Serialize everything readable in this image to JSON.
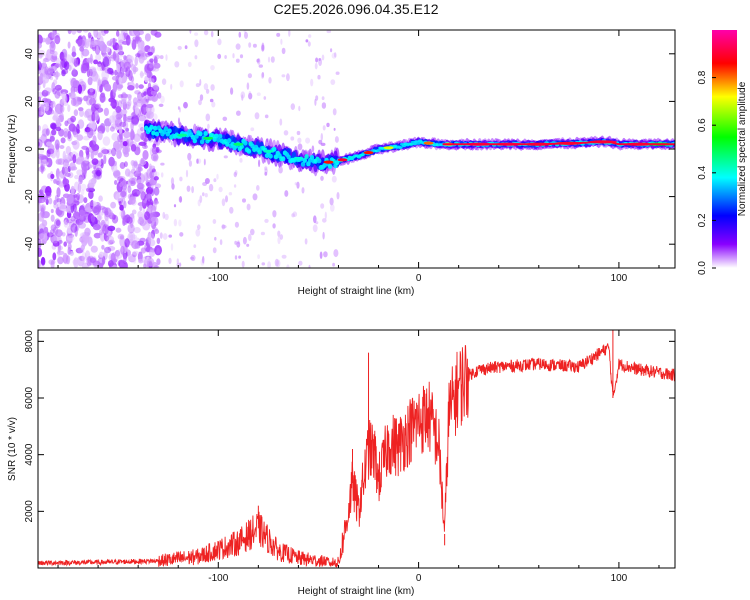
{
  "chart_data": [
    {
      "type": "heatmap",
      "title": "C2E5.2026.096.04.35.E12",
      "xlabel": "Height of straight line (km)",
      "ylabel": "Frequency (Hz)",
      "xlim": [
        -190,
        128
      ],
      "ylim": [
        -50,
        50
      ],
      "x_ticks": [
        -100,
        0,
        100
      ],
      "y_ticks": [
        -40,
        -20,
        0,
        20,
        40
      ],
      "colorbar": {
        "label": "Normalized spectral amplitude",
        "range": [
          0,
          1
        ],
        "ticks": [
          0.0,
          0.2,
          0.4,
          0.6,
          0.8
        ],
        "colors": [
          "#ffffff",
          "#8800ff",
          "#0000ff",
          "#00ffff",
          "#00ff00",
          "#ffff00",
          "#ff0000",
          "#ff00aa"
        ]
      },
      "ridge": {
        "x": [
          -135,
          -120,
          -100,
          -80,
          -60,
          -50,
          -40,
          -30,
          -20,
          -10,
          0,
          10,
          20,
          40,
          60,
          80,
          90,
          95,
          100,
          110,
          120,
          128
        ],
        "freq": [
          8,
          6,
          4,
          0,
          -4,
          -6,
          -5,
          -3,
          0,
          1,
          3,
          2,
          2,
          2,
          2,
          2.5,
          3,
          3,
          2,
          2,
          2,
          2
        ]
      },
      "noise_region_x": [
        -190,
        -130
      ]
    },
    {
      "type": "line",
      "xlabel": "Height of straight line (km)",
      "ylabel": "SNR (10 * v/v)",
      "xlim": [
        -190,
        128
      ],
      "ylim": [
        0,
        8400
      ],
      "x_ticks": [
        -100,
        0,
        100
      ],
      "y_ticks": [
        2000,
        4000,
        6000,
        8000
      ],
      "series": [
        {
          "name": "SNR",
          "color": "#ee2222",
          "x": [
            -190,
            -160,
            -130,
            -110,
            -90,
            -80,
            -70,
            -60,
            -50,
            -45,
            -40,
            -36,
            -33,
            -30,
            -25,
            -22,
            -20,
            -15,
            -10,
            -5,
            0,
            5,
            10,
            13,
            15,
            20,
            25,
            30,
            40,
            60,
            80,
            95,
            97,
            100,
            110,
            120,
            128
          ],
          "y": [
            180,
            200,
            250,
            400,
            900,
            1400,
            600,
            350,
            250,
            200,
            180,
            1600,
            3000,
            2000,
            4200,
            4000,
            3100,
            4400,
            4300,
            4800,
            5200,
            5400,
            4400,
            1200,
            5400,
            6400,
            6800,
            7000,
            7100,
            7200,
            7100,
            7800,
            6000,
            7200,
            7000,
            6900,
            6800
          ]
        }
      ]
    }
  ]
}
